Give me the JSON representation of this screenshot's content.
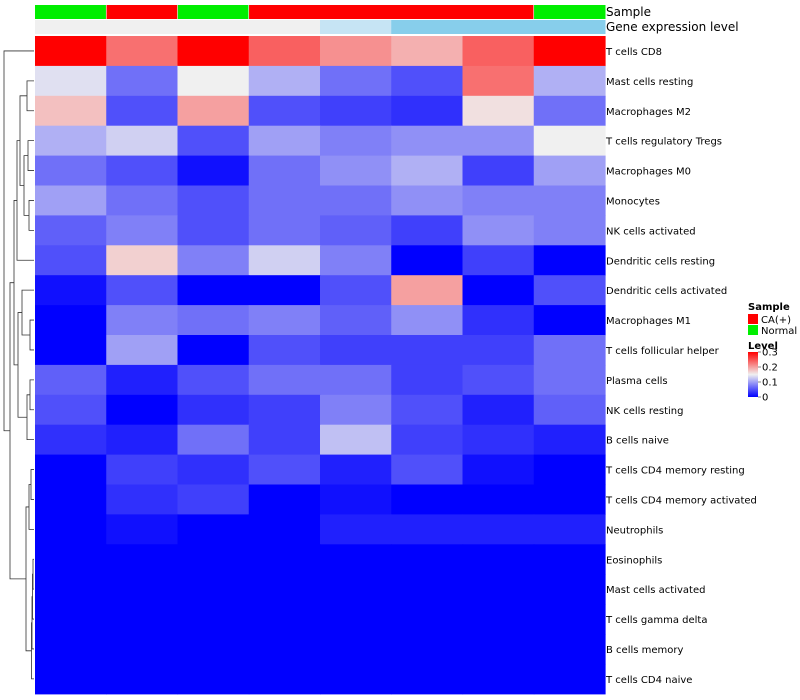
{
  "chart_data": {
    "type": "heatmap",
    "annotation_rows": [
      "Sample",
      "Gene expression level"
    ],
    "columns": [
      {
        "sample": "Normal",
        "gene_expression_level": "Low"
      },
      {
        "sample": "CA(+)",
        "gene_expression_level": "Low"
      },
      {
        "sample": "Normal",
        "gene_expression_level": "Low"
      },
      {
        "sample": "CA(+)",
        "gene_expression_level": "Low"
      },
      {
        "sample": "CA(+)",
        "gene_expression_level": "Medium"
      },
      {
        "sample": "CA(+)",
        "gene_expression_level": "High"
      },
      {
        "sample": "CA(+)",
        "gene_expression_level": "High"
      },
      {
        "sample": "Normal",
        "gene_expression_level": "High"
      }
    ],
    "rows": [
      "T cells CD8",
      "Mast cells resting",
      "Macrophages M2",
      "T cells regulatory  Tregs",
      "Macrophages M0",
      "Monocytes",
      "NK cells activated",
      "Dendritic cells resting",
      "Dendritic cells activated",
      "Macrophages M1",
      "T cells follicular helper",
      "Plasma cells",
      "NK cells resting",
      "B cells naive",
      "T cells CD4 memory resting",
      "T cells CD4 memory activated",
      "Neutrophils",
      "Eosinophils",
      "Mast cells activated",
      "T cells gamma delta",
      "B cells memory",
      "T cells CD4 naive"
    ],
    "values": [
      [
        0.3,
        0.23,
        0.3,
        0.24,
        0.21,
        0.19,
        0.24,
        0.3
      ],
      [
        0.14,
        0.07,
        0.15,
        0.11,
        0.07,
        0.05,
        0.23,
        0.11
      ],
      [
        0.18,
        0.05,
        0.2,
        0.05,
        0.04,
        0.03,
        0.16,
        0.07
      ],
      [
        0.11,
        0.13,
        0.05,
        0.1,
        0.08,
        0.09,
        0.09,
        0.15
      ],
      [
        0.07,
        0.05,
        0.01,
        0.07,
        0.09,
        0.11,
        0.04,
        0.1
      ],
      [
        0.1,
        0.07,
        0.05,
        0.07,
        0.07,
        0.09,
        0.08,
        0.08
      ],
      [
        0.06,
        0.08,
        0.05,
        0.07,
        0.06,
        0.04,
        0.09,
        0.08
      ],
      [
        0.05,
        0.17,
        0.08,
        0.13,
        0.08,
        0.0,
        0.04,
        0.0
      ],
      [
        0.01,
        0.05,
        0.0,
        0.0,
        0.05,
        0.2,
        0.0,
        0.05
      ],
      [
        0.0,
        0.08,
        0.07,
        0.08,
        0.06,
        0.09,
        0.03,
        0.0
      ],
      [
        0.0,
        0.1,
        0.0,
        0.05,
        0.04,
        0.04,
        0.04,
        0.07
      ],
      [
        0.06,
        0.02,
        0.05,
        0.07,
        0.07,
        0.04,
        0.05,
        0.07
      ],
      [
        0.05,
        0.0,
        0.03,
        0.04,
        0.08,
        0.05,
        0.02,
        0.06
      ],
      [
        0.03,
        0.02,
        0.07,
        0.04,
        0.12,
        0.04,
        0.03,
        0.02
      ],
      [
        0.0,
        0.04,
        0.03,
        0.05,
        0.02,
        0.05,
        0.01,
        0.0
      ],
      [
        0.0,
        0.03,
        0.04,
        0.0,
        0.01,
        0.0,
        0.0,
        0.0
      ],
      [
        0.0,
        0.01,
        0.0,
        0.0,
        0.02,
        0.02,
        0.02,
        0.02
      ],
      [
        0.0,
        0.0,
        0.0,
        0.0,
        0.0,
        0.0,
        0.0,
        0.0
      ],
      [
        0.0,
        0.0,
        0.0,
        0.0,
        0.0,
        0.0,
        0.0,
        0.0
      ],
      [
        0.0,
        0.0,
        0.0,
        0.0,
        0.0,
        0.0,
        0.0,
        0.0
      ],
      [
        0.0,
        0.0,
        0.0,
        0.0,
        0.0,
        0.0,
        0.0,
        0.0
      ],
      [
        0.0,
        0.0,
        0.0,
        0.0,
        0.0,
        0.0,
        0.0,
        0.0
      ]
    ],
    "color_scale": {
      "min": 0,
      "max": 0.3,
      "low_color": "#0000ff",
      "mid_color": "#f0f0f0",
      "high_color": "#ff0000",
      "mid_value": 0.15
    },
    "legend": {
      "sample_title": "Sample",
      "sample_entries": [
        {
          "label": "CA(+)",
          "color": "#ff0000"
        },
        {
          "label": "Normal",
          "color": "#00ee00"
        }
      ],
      "level_title": "Level",
      "level_ticks": [
        "0.3",
        "0.2",
        "0.1",
        "0"
      ],
      "level_tick_values": [
        0.3,
        0.2,
        0.1,
        0
      ],
      "placement": "right"
    },
    "gene_expression_colors": {
      "Low": "#f0f0f0",
      "Medium": "#c6e4f4",
      "High": "#87ceeb"
    },
    "dendrogram": "left (rows)"
  }
}
